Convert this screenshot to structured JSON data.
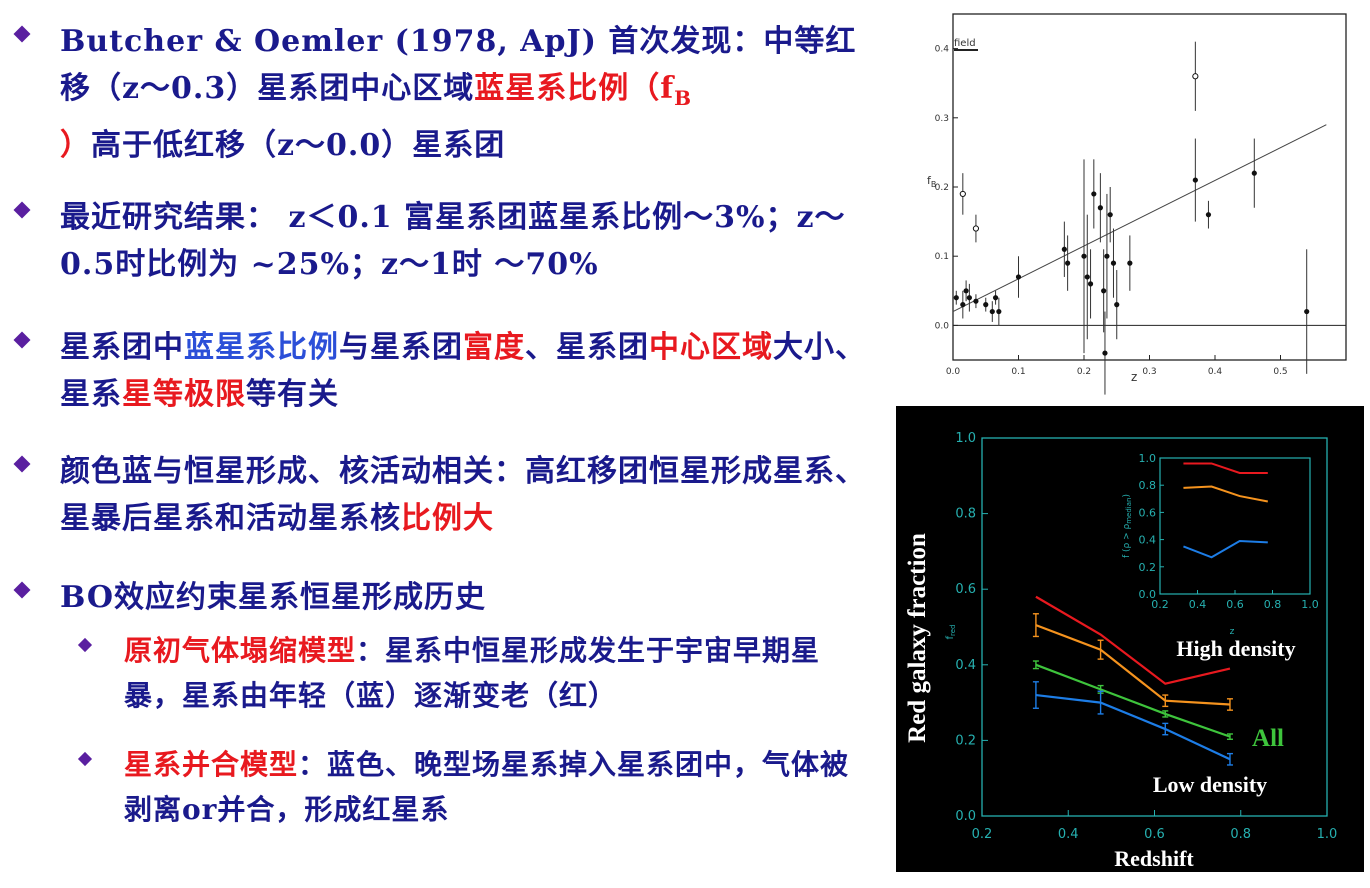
{
  "bullets": {
    "b1": {
      "p1": "Butcher & Oemler (1978, ApJ) 首次发现：中等红移（z～0.3）星系团中心区域",
      "p2": "蓝星系比例（f",
      "p2sub": "B",
      "p3": "）",
      "p4": "高于低红移（z～0.0）星系团"
    },
    "b2": {
      "p1": "最近研究结果： z＜0.1 富星系团蓝星系比例～3%；z～0.5时比例为 ~25%；z～1时 ～70%"
    },
    "b3": {
      "p1": "星系团中",
      "p2": "蓝星系比例",
      "p3": "与星系团",
      "p4": "富度",
      "p5": "、星系团",
      "p6": "中心区域",
      "p7": "大小、星系",
      "p8": "星等极限",
      "p9": "等有关"
    },
    "b4": {
      "p1": "颜色蓝与恒星形成、核活动相关：高红移团恒星形成星系、星暴后星系和活动星系核",
      "p2": "比例大"
    },
    "b5": {
      "p1": "BO效应约束星系恒星形成历史"
    },
    "s1": {
      "p1": "原初气体塌缩模型",
      "p2": "：星系中恒星形成发生于宇宙早期星暴，星系由年轻（蓝）逐渐变老（红）"
    },
    "s2": {
      "p1": "星系并合模型",
      "p2": "：蓝色、晚型场星系掉入星系团中，气体被剥离or并合，形成红星系"
    }
  },
  "colors": {
    "text": "#1a1a8c",
    "highlight_red": "#e8191f",
    "highlight_blue": "#2b4fd8",
    "bullet_marker": "#5a1fa0"
  },
  "chart_data": [
    {
      "type": "scatter",
      "legend": [
        "field"
      ],
      "ylabel": "f",
      "ylabel_sub": "B",
      "xlabel": "z",
      "xlim": [
        0,
        0.6
      ],
      "ylim": [
        -0.05,
        0.45
      ],
      "xticks": [
        "0.0",
        "0.1",
        "0.2",
        "0.3",
        "0.4",
        "0.5"
      ],
      "yticks": [
        "0.0",
        "0.1",
        "0.2",
        "0.3",
        "0.4"
      ],
      "fit_line": [
        [
          0.0,
          0.02
        ],
        [
          0.57,
          0.29
        ]
      ],
      "filled_points": [
        {
          "x": 0.005,
          "y": 0.04,
          "err": 0.01
        },
        {
          "x": 0.015,
          "y": 0.03,
          "err": 0.02
        },
        {
          "x": 0.02,
          "y": 0.05,
          "err": 0.015
        },
        {
          "x": 0.025,
          "y": 0.04,
          "err": 0.02
        },
        {
          "x": 0.035,
          "y": 0.035,
          "err": 0.01
        },
        {
          "x": 0.05,
          "y": 0.03,
          "err": 0.01
        },
        {
          "x": 0.06,
          "y": 0.02,
          "err": 0.015
        },
        {
          "x": 0.065,
          "y": 0.04,
          "err": 0.01
        },
        {
          "x": 0.07,
          "y": 0.02,
          "err": 0.02
        },
        {
          "x": 0.1,
          "y": 0.07,
          "err": 0.03
        },
        {
          "x": 0.17,
          "y": 0.11,
          "err": 0.04
        },
        {
          "x": 0.175,
          "y": 0.09,
          "err": 0.04
        },
        {
          "x": 0.2,
          "y": 0.1,
          "err": 0.14
        },
        {
          "x": 0.205,
          "y": 0.07,
          "err": 0.09
        },
        {
          "x": 0.21,
          "y": 0.06,
          "err": 0.05
        },
        {
          "x": 0.215,
          "y": 0.19,
          "err": 0.05
        },
        {
          "x": 0.225,
          "y": 0.17,
          "err": 0.05
        },
        {
          "x": 0.23,
          "y": 0.05,
          "err": 0.06
        },
        {
          "x": 0.232,
          "y": -0.04,
          "err": 0.06
        },
        {
          "x": 0.235,
          "y": 0.1,
          "err": 0.09
        },
        {
          "x": 0.24,
          "y": 0.16,
          "err": 0.04
        },
        {
          "x": 0.245,
          "y": 0.09,
          "err": 0.05
        },
        {
          "x": 0.25,
          "y": 0.03,
          "err": 0.05
        },
        {
          "x": 0.27,
          "y": 0.09,
          "err": 0.04
        },
        {
          "x": 0.37,
          "y": 0.21,
          "err": 0.06
        },
        {
          "x": 0.39,
          "y": 0.16,
          "err": 0.02
        },
        {
          "x": 0.46,
          "y": 0.22,
          "err": 0.05
        },
        {
          "x": 0.54,
          "y": 0.02,
          "err": 0.09
        }
      ],
      "open_points": [
        {
          "x": 0.015,
          "y": 0.19,
          "err": 0.03
        },
        {
          "x": 0.035,
          "y": 0.14,
          "err": 0.02
        },
        {
          "x": 0.37,
          "y": 0.36,
          "err": 0.05
        }
      ]
    },
    {
      "type": "line",
      "ylabel": "Red galaxy fraction",
      "ylabel_sub": "f",
      "ylabel_subsub": "red",
      "xlabel": "Redshift",
      "xlim": [
        0.2,
        1.0
      ],
      "ylim": [
        0.0,
        1.0
      ],
      "xticks": [
        "0.2",
        "0.4",
        "0.6",
        "0.8",
        "1.0"
      ],
      "yticks": [
        "0.0",
        "0.2",
        "0.4",
        "0.6",
        "0.8",
        "1.0"
      ],
      "x": [
        0.325,
        0.475,
        0.625,
        0.775
      ],
      "series": [
        {
          "name": "High density",
          "color": "#e8191f",
          "values": [
            0.58,
            0.48,
            0.35,
            0.39
          ]
        },
        {
          "name": "",
          "color": "#f5931e",
          "values": [
            0.505,
            0.44,
            0.305,
            0.295
          ],
          "err": [
            0.03,
            0.025,
            0.015,
            0.015
          ]
        },
        {
          "name": "All",
          "color": "#3ec43c",
          "values": [
            0.4,
            0.335,
            0.27,
            0.21
          ],
          "err": [
            0.01,
            0.01,
            0.008,
            0.007
          ]
        },
        {
          "name": "Low density",
          "color": "#1d7de6",
          "values": [
            0.32,
            0.3,
            0.23,
            0.15
          ],
          "err": [
            0.035,
            0.03,
            0.015,
            0.015
          ]
        }
      ],
      "inset": {
        "ylabel": "f (ρ > ρ",
        "ylabel_sub": "median",
        "ylabel_end": ")",
        "xlabel": "z",
        "xlim": [
          0.2,
          1.0
        ],
        "ylim": [
          0.0,
          1.0
        ],
        "xticks": [
          "0.2",
          "0.4",
          "0.6",
          "0.8",
          "1.0"
        ],
        "yticks": [
          "0.0",
          "0.2",
          "0.4",
          "0.6",
          "0.8",
          "1.0"
        ],
        "x": [
          0.325,
          0.475,
          0.625,
          0.775
        ],
        "series": [
          {
            "color": "#e8191f",
            "values": [
              0.96,
              0.96,
              0.89,
              0.89
            ]
          },
          {
            "color": "#f5931e",
            "values": [
              0.78,
              0.79,
              0.72,
              0.68
            ]
          },
          {
            "color": "#1d7de6",
            "values": [
              0.35,
              0.27,
              0.39,
              0.38
            ]
          }
        ]
      }
    }
  ]
}
